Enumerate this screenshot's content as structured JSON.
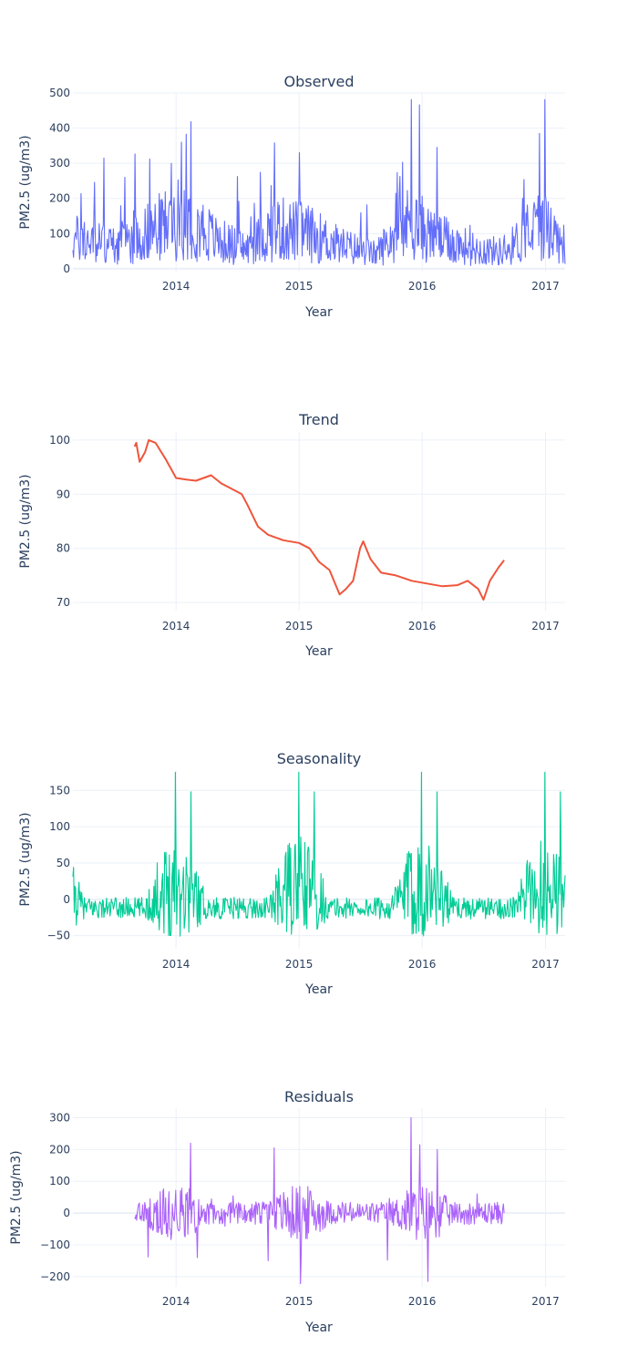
{
  "chart_data": [
    {
      "type": "line",
      "title": "Observed",
      "xlabel": "Year",
      "ylabel": "PM2.5 (ug/m3)",
      "xlim": [
        "2013-03-01",
        "2017-02-28"
      ],
      "ylim": [
        -8,
        500
      ],
      "yticks": [
        0,
        100,
        200,
        300,
        400,
        500
      ],
      "xticks": [
        "2014",
        "2015",
        "2016",
        "2017"
      ],
      "grid": true,
      "legend": false,
      "color": "#636efa",
      "series": [
        {
          "x_start": "2013-03-01",
          "x_end": "2017-02-28",
          "y_min": 3,
          "y_max": 481,
          "anchors": [
            [
              "2013-03-01",
              90
            ],
            [
              "2013-07-01",
              70
            ],
            [
              "2013-10-15",
              110
            ],
            [
              "2014-02-01",
              160
            ],
            [
              "2014-05-01",
              85
            ],
            [
              "2014-08-01",
              60
            ],
            [
              "2014-10-20",
              120
            ],
            [
              "2015-01-15",
              110
            ],
            [
              "2015-05-01",
              70
            ],
            [
              "2015-08-15",
              45
            ],
            [
              "2015-12-01",
              145
            ],
            [
              "2016-02-01",
              95
            ],
            [
              "2016-06-01",
              60
            ],
            [
              "2016-09-01",
              50
            ],
            [
              "2016-12-20",
              140
            ],
            [
              "2017-02-28",
              70
            ]
          ],
          "peaks": [
            [
              "2014-02-14",
              418
            ],
            [
              "2014-01-18",
              360
            ],
            [
              "2014-10-20",
              358
            ],
            [
              "2015-01-03",
              330
            ],
            [
              "2015-11-30",
              481
            ],
            [
              "2015-12-25",
              466
            ],
            [
              "2016-12-30",
              481
            ],
            [
              "2016-12-15",
              385
            ],
            [
              "2013-10-15",
              312
            ],
            [
              "2016-02-15",
              345
            ],
            [
              "2013-06-01",
              315
            ]
          ]
        }
      ]
    },
    {
      "type": "line",
      "title": "Trend",
      "xlabel": "Year",
      "ylabel": "PM2.5 (ug/m3)",
      "xlim": [
        "2013-03-01",
        "2017-02-28"
      ],
      "ylim": [
        68.5,
        101.5
      ],
      "yticks": [
        70,
        80,
        90,
        100
      ],
      "xticks": [
        "2014",
        "2015",
        "2016",
        "2017"
      ],
      "grid": true,
      "legend": false,
      "color": "#ef553b",
      "series": [
        {
          "points": [
            [
              "2013-08-31",
              98.8
            ],
            [
              "2013-09-05",
              99.5
            ],
            [
              "2013-09-15",
              96.0
            ],
            [
              "2013-10-01",
              97.8
            ],
            [
              "2013-10-12",
              100.0
            ],
            [
              "2013-11-01",
              99.5
            ],
            [
              "2013-12-01",
              96.5
            ],
            [
              "2014-01-01",
              93.0
            ],
            [
              "2014-02-01",
              92.7
            ],
            [
              "2014-03-01",
              92.5
            ],
            [
              "2014-04-15",
              93.5
            ],
            [
              "2014-05-15",
              92.0
            ],
            [
              "2014-06-15",
              91.0
            ],
            [
              "2014-07-15",
              90.0
            ],
            [
              "2014-08-01",
              88.0
            ],
            [
              "2014-09-01",
              84.0
            ],
            [
              "2014-10-01",
              82.5
            ],
            [
              "2014-11-15",
              81.5
            ],
            [
              "2015-01-01",
              81.0
            ],
            [
              "2015-02-01",
              80.0
            ],
            [
              "2015-03-01",
              77.5
            ],
            [
              "2015-04-01",
              76.0
            ],
            [
              "2015-05-01",
              71.5
            ],
            [
              "2015-05-20",
              72.5
            ],
            [
              "2015-06-10",
              74.0
            ],
            [
              "2015-07-01",
              80.0
            ],
            [
              "2015-07-10",
              81.3
            ],
            [
              "2015-08-01",
              78.0
            ],
            [
              "2015-09-01",
              75.5
            ],
            [
              "2015-10-15",
              75.0
            ],
            [
              "2015-12-01",
              74.0
            ],
            [
              "2016-01-15",
              73.5
            ],
            [
              "2016-03-01",
              73.0
            ],
            [
              "2016-04-15",
              73.2
            ],
            [
              "2016-05-15",
              74.0
            ],
            [
              "2016-06-15",
              72.5
            ],
            [
              "2016-07-01",
              70.5
            ],
            [
              "2016-07-20",
              74.0
            ],
            [
              "2016-08-15",
              76.5
            ],
            [
              "2016-08-31",
              77.8
            ]
          ]
        }
      ]
    },
    {
      "type": "line",
      "title": "Seasonality",
      "xlabel": "Year",
      "ylabel": "PM2.5 (ug/m3)",
      "xlim": [
        "2013-03-01",
        "2017-02-28"
      ],
      "ylim": [
        -68,
        178
      ],
      "yticks": [
        -50,
        0,
        50,
        100,
        150
      ],
      "xticks": [
        "2014",
        "2015",
        "2016",
        "2017"
      ],
      "grid": true,
      "legend": false,
      "color": "#00cc96",
      "series": [
        {
          "x_start": "2013-03-01",
          "x_end": "2017-02-28",
          "y_min": -65,
          "y_max": 175,
          "period_days": 365,
          "seasonal_peak_month_day": "12-31",
          "peaks": [
            [
              "2013-12-31",
              175
            ],
            [
              "2014-12-31",
              175
            ],
            [
              "2015-12-31",
              175
            ],
            [
              "2016-12-31",
              175
            ],
            [
              "2014-02-15",
              148
            ],
            [
              "2015-02-15",
              148
            ],
            [
              "2016-02-15",
              148
            ],
            [
              "2017-02-15",
              148
            ]
          ]
        }
      ]
    },
    {
      "type": "line",
      "title": "Residuals",
      "xlabel": "Year",
      "ylabel": "PM2.5 (ug/m3)",
      "xlim": [
        "2013-03-01",
        "2017-02-28"
      ],
      "ylim": [
        -232,
        330
      ],
      "yticks": [
        -200,
        -100,
        0,
        100,
        200,
        300
      ],
      "xticks": [
        "2014",
        "2015",
        "2016",
        "2017"
      ],
      "grid": true,
      "legend": false,
      "color": "#ab63fa",
      "series": [
        {
          "x_start": "2013-08-31",
          "x_end": "2016-08-31",
          "y_min": -222,
          "y_max": 300,
          "peaks": [
            [
              "2014-02-14",
              220
            ],
            [
              "2014-10-20",
              205
            ],
            [
              "2015-11-30",
              300
            ],
            [
              "2015-12-25",
              215
            ],
            [
              "2016-02-15",
              200
            ],
            [
              "2015-01-05",
              -222
            ],
            [
              "2016-01-18",
              -215
            ],
            [
              "2014-10-01",
              -150
            ],
            [
              "2015-09-20",
              -148
            ],
            [
              "2013-10-10",
              -138
            ],
            [
              "2014-03-05",
              -140
            ]
          ]
        }
      ]
    }
  ]
}
